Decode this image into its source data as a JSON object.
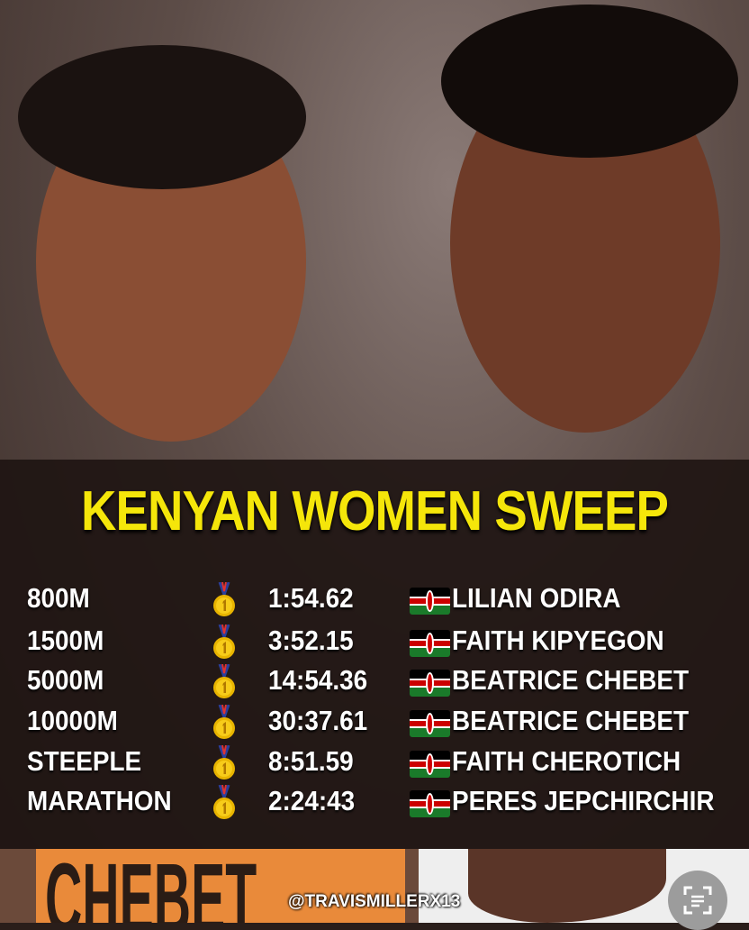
{
  "title": "KENYAN WOMEN SWEEP",
  "rows": [
    {
      "event": "800M",
      "time": "1:54.62",
      "athlete": "LILIAN ODIRA"
    },
    {
      "event": "1500M",
      "time": "3:52.15",
      "athlete": "FAITH KIPYEGON"
    },
    {
      "event": "5000M",
      "time": "14:54.36",
      "athlete": "BEATRICE CHEBET"
    },
    {
      "event": "10000M",
      "time": "30:37.61",
      "athlete": "BEATRICE CHEBET"
    },
    {
      "event": "STEEPLE",
      "time": "8:51.59",
      "athlete": "FAITH CHEROTICH"
    },
    {
      "event": "MARATHON",
      "time": "2:24:43",
      "athlete": "PERES JEPCHIRCHIR"
    }
  ],
  "medal_icon": "gold-medal-1st",
  "flag_icon": "kenya-flag",
  "bib_text": "CHEBET",
  "watermark": "@TRAVISMILLERX13",
  "colors": {
    "title": "#f5e60a",
    "panel": "#1e1412"
  }
}
